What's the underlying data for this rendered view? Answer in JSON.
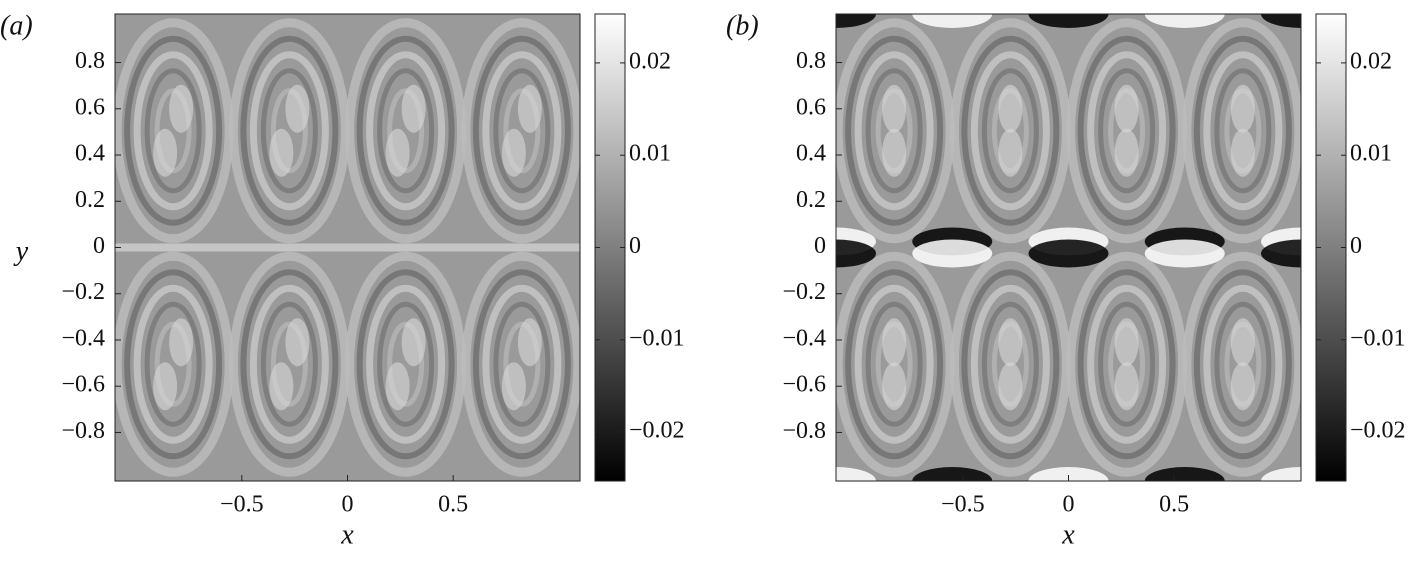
{
  "chart_data": [
    {
      "type": "heatmap",
      "panel_label": "(a)",
      "xlabel": "x",
      "ylabel": "y",
      "colormap": "gray",
      "xlim": [
        -1.1,
        1.1
      ],
      "ylim": [
        -1.01,
        1.01
      ],
      "xticks": [
        {
          "value": -0.5,
          "label": "−0.5"
        },
        0,
        0.5
      ],
      "yticks": [
        {
          "value": -0.8,
          "label": "−0.8"
        },
        {
          "value": -0.6,
          "label": "−0.6"
        },
        {
          "value": -0.4,
          "label": "−0.4"
        },
        {
          "value": -0.2,
          "label": "−0.2"
        },
        0,
        0.2,
        0.4,
        0.6,
        0.8
      ],
      "clim": [
        -0.0253,
        0.0253
      ],
      "cticks": [
        {
          "value": -0.02,
          "label": "−0.02"
        },
        {
          "value": -0.01,
          "label": "−0.01"
        },
        0,
        0.01,
        0.02
      ]
    },
    {
      "type": "heatmap",
      "panel_label": "(b)",
      "xlabel": "x",
      "colormap": "gray",
      "xlim": [
        -1.1,
        1.1
      ],
      "ylim": [
        -1.01,
        1.01
      ],
      "xticks": [
        {
          "value": -0.5,
          "label": "−0.5"
        },
        0,
        0.5
      ],
      "yticks": [
        {
          "value": -0.8,
          "label": "−0.8"
        },
        {
          "value": -0.6,
          "label": "−0.6"
        },
        {
          "value": -0.4,
          "label": "−0.4"
        },
        {
          "value": -0.2,
          "label": "−0.2"
        },
        0,
        0.2,
        0.4,
        0.6,
        0.8
      ],
      "clim": [
        -0.0253,
        0.0253
      ],
      "cticks": [
        {
          "value": -0.02,
          "label": "−0.02"
        },
        {
          "value": -0.01,
          "label": "−0.01"
        },
        0,
        0.01,
        0.02
      ]
    }
  ]
}
